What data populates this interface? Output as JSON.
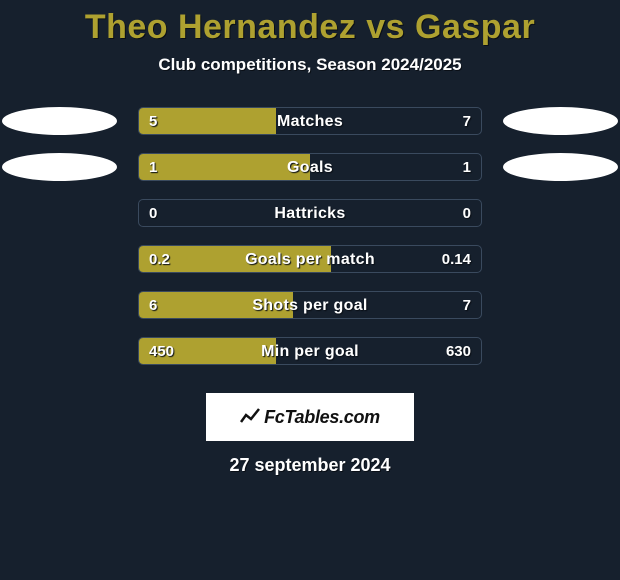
{
  "title": {
    "text": "Theo Hernandez vs Gaspar",
    "color": "#aea130",
    "fontsize": 34
  },
  "subtitle": {
    "text": "Club competitions, Season 2024/2025",
    "fontsize": 17
  },
  "background_color": "#16202d",
  "bar_fill_color": "#aea130",
  "bar_border_color": "#3a4a5e",
  "ellipse_color": "#ffffff",
  "text_color": "#ffffff",
  "text_shadow": "#0a0f16",
  "logo": {
    "text": "FcTables.com",
    "background": "#ffffff",
    "text_color": "#111111",
    "fontsize": 18
  },
  "date": {
    "text": "27 september 2024",
    "fontsize": 18
  },
  "rows": [
    {
      "label": "Matches",
      "left_value": "5",
      "right_value": "7",
      "left_pct": 40,
      "right_pct": 0,
      "show_left_ellipse": true,
      "show_right_ellipse": true
    },
    {
      "label": "Goals",
      "left_value": "1",
      "right_value": "1",
      "left_pct": 50,
      "right_pct": 0,
      "show_left_ellipse": true,
      "show_right_ellipse": true
    },
    {
      "label": "Hattricks",
      "left_value": "0",
      "right_value": "0",
      "left_pct": 0,
      "right_pct": 0,
      "show_left_ellipse": false,
      "show_right_ellipse": false
    },
    {
      "label": "Goals per match",
      "left_value": "0.2",
      "right_value": "0.14",
      "left_pct": 56,
      "right_pct": 0,
      "show_left_ellipse": false,
      "show_right_ellipse": false
    },
    {
      "label": "Shots per goal",
      "left_value": "6",
      "right_value": "7",
      "left_pct": 45,
      "right_pct": 0,
      "show_left_ellipse": false,
      "show_right_ellipse": false
    },
    {
      "label": "Min per goal",
      "left_value": "450",
      "right_value": "630",
      "left_pct": 40,
      "right_pct": 0,
      "show_left_ellipse": false,
      "show_right_ellipse": false
    }
  ]
}
